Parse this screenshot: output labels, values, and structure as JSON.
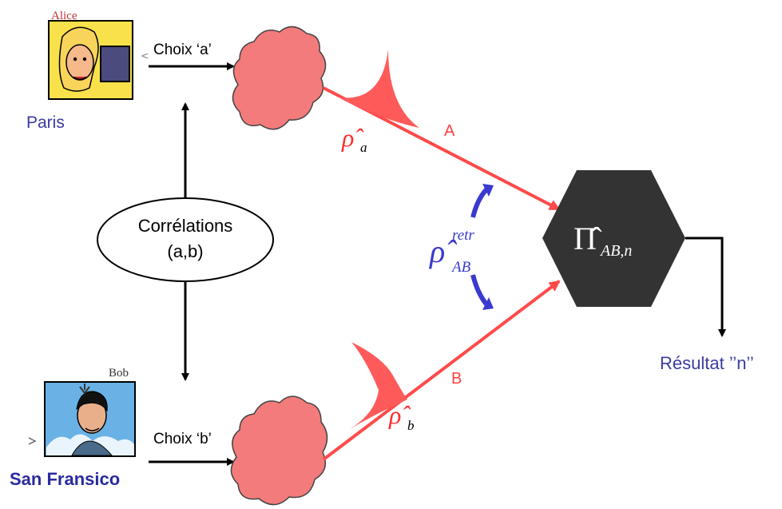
{
  "alice": {
    "caption": "Alice",
    "city": "Paris",
    "choice": "Choix ‘a’"
  },
  "bob": {
    "caption": "Bob",
    "city": "San Fransico",
    "choice": "Choix ‘b’"
  },
  "correlations": {
    "line1": "Corrélations",
    "line2": "(a,b)"
  },
  "beams": {
    "a_label": "A",
    "b_label": "B"
  },
  "states": {
    "rho_a": {
      "base": "ρ̂",
      "sub": "a"
    },
    "rho_b": {
      "base": "ρ̂",
      "sub": "b"
    },
    "rho_ab": {
      "base": "ρ̂",
      "sup": "retr",
      "sub": "AB"
    }
  },
  "measurement": {
    "base": "Π̂",
    "sub": "AB,n"
  },
  "result": {
    "label": "Résultat ’’n’’"
  },
  "colors": {
    "beam": "#ff4a4a",
    "cloud": "#f47b7b",
    "blue": "#3a3aa8",
    "hexagon": "#333333"
  }
}
